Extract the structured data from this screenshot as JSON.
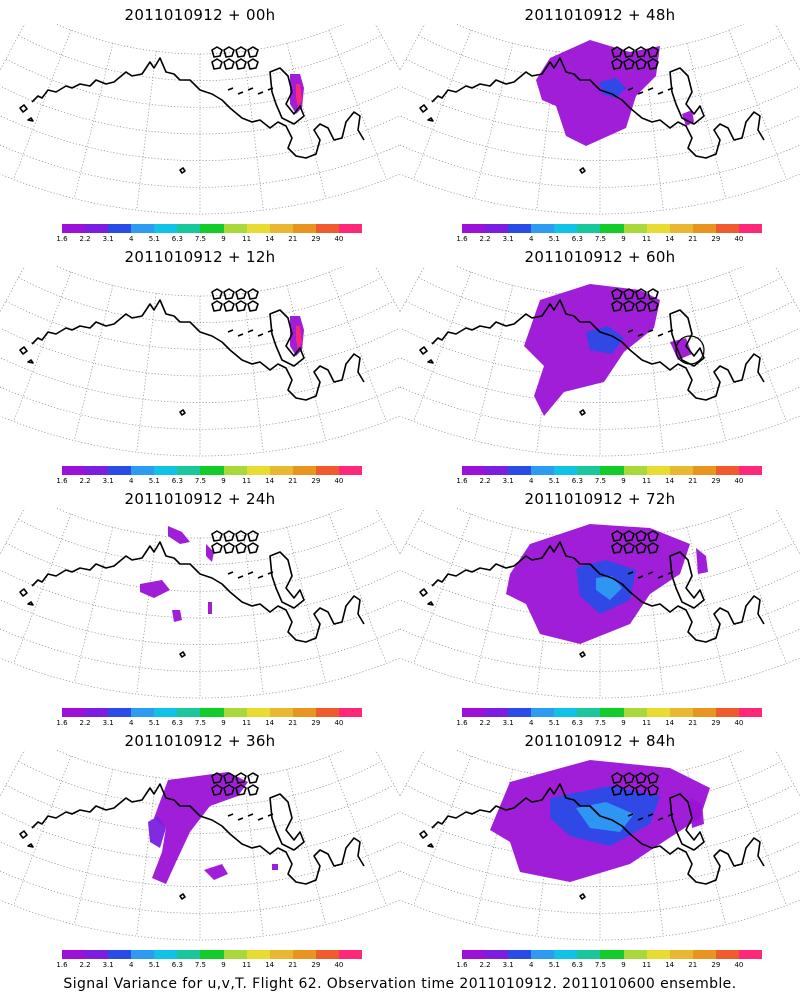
{
  "caption": "Signal Variance for u,v,T. Flight 62. Observation time 2011010912. 2011010600 ensemble.",
  "colorbar": {
    "colors": [
      "#9b12d6",
      "#7a1fe0",
      "#2a4be6",
      "#2e9bf2",
      "#10c3e6",
      "#18c79c",
      "#12cc2a",
      "#a8d83a",
      "#e8dc30",
      "#e8b830",
      "#e8941f",
      "#f05a2f",
      "#ff2878"
    ],
    "labels": [
      "1.6",
      "2.2",
      "3.1",
      "4",
      "5.1",
      "6.3",
      "7.5",
      "9",
      "11",
      "14",
      "21",
      "29",
      "40"
    ]
  },
  "panels": [
    {
      "title": "2011010912 + 00h",
      "level": 0
    },
    {
      "title": "2011010912 + 48h",
      "level": 3
    },
    {
      "title": "2011010912 + 12h",
      "level": 0
    },
    {
      "title": "2011010912 + 60h",
      "level": 4
    },
    {
      "title": "2011010912 + 24h",
      "level": 1
    },
    {
      "title": "2011010912 + 72h",
      "level": 5
    },
    {
      "title": "2011010912 + 36h",
      "level": 2
    },
    {
      "title": "2011010912 + 84h",
      "level": 6
    }
  ]
}
